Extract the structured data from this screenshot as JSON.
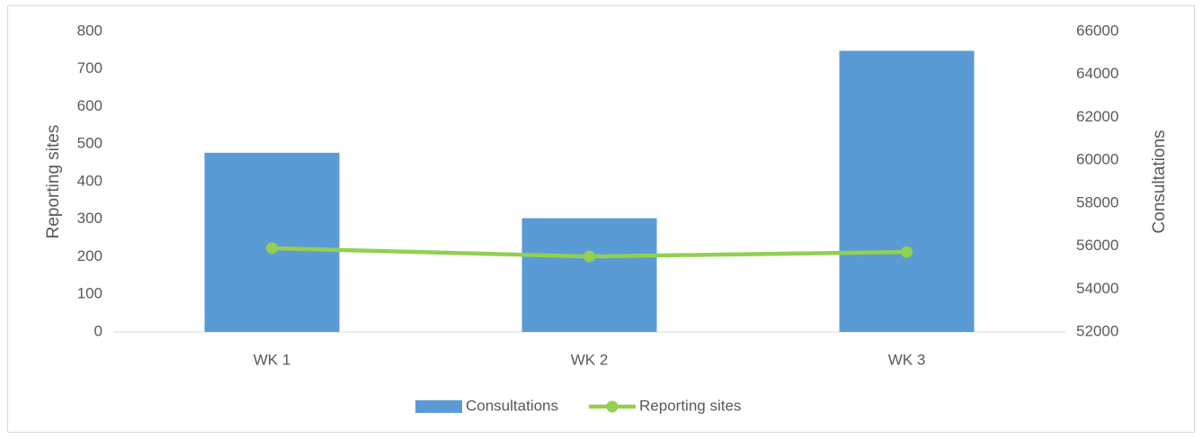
{
  "chart_data": {
    "type": "combo",
    "categories": [
      "WK 1",
      "WK 2",
      "WK 3"
    ],
    "series": [
      {
        "name": "Consultations",
        "type": "bar",
        "axis": "y2",
        "color": "#5b9bd5",
        "values": [
          60350,
          57300,
          65100
        ]
      },
      {
        "name": "Reporting sites",
        "type": "line",
        "axis": "y",
        "color": "#92d050",
        "values": [
          223,
          201,
          213
        ]
      }
    ],
    "ylabel": "Reporting sites",
    "y2label": "Consultations",
    "ylim": [
      0,
      800
    ],
    "yticks": [
      0,
      100,
      200,
      300,
      400,
      500,
      600,
      700,
      800
    ],
    "y2lim": [
      52000,
      66000
    ],
    "y2ticks": [
      52000,
      54000,
      56000,
      58000,
      60000,
      62000,
      64000,
      66000
    ],
    "legend": "bottom"
  }
}
